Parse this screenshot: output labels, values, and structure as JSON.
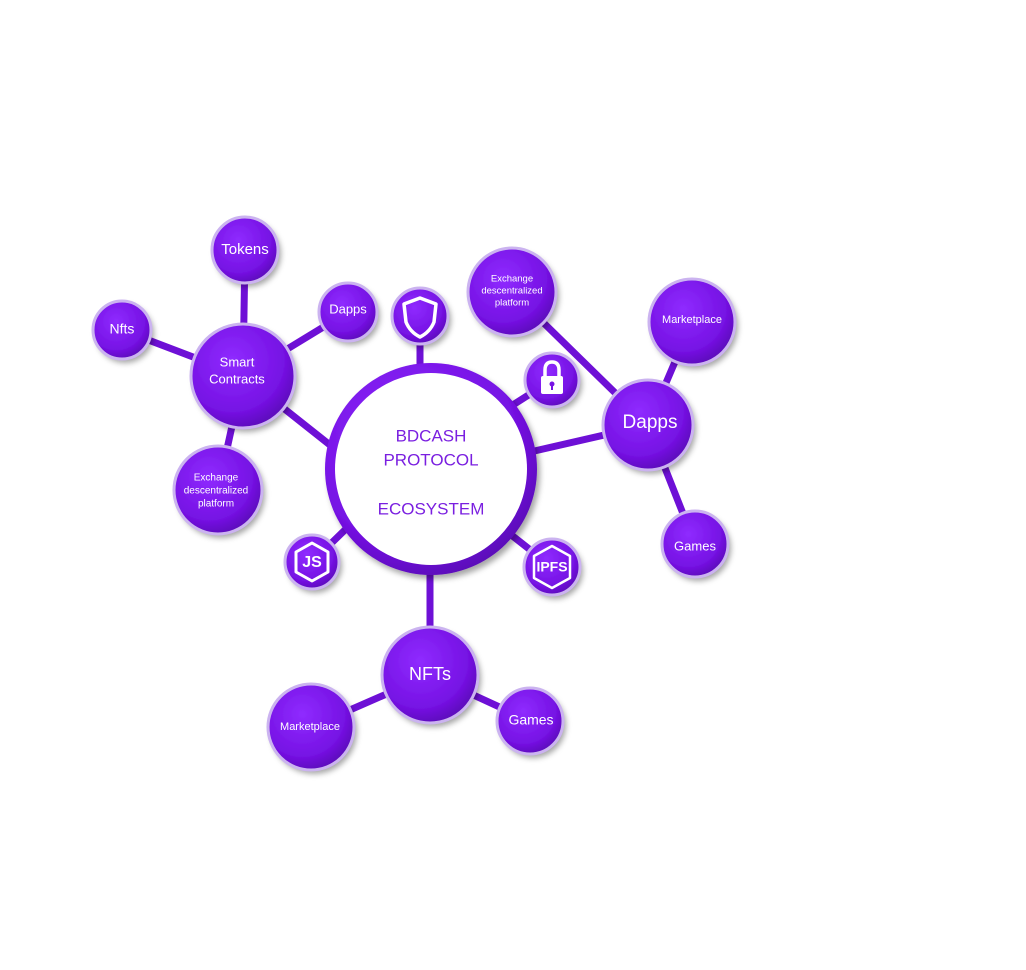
{
  "colors": {
    "node": "#7d16ec",
    "node_dark": "#5a06b8",
    "link": "#6e10d6",
    "center_text": "#7a1fe0",
    "background": "#ffffff"
  },
  "center": {
    "line1": "BDCASH",
    "line2": "PROTOCOL",
    "line3": "ECOSYSTEM"
  },
  "smart_contracts": {
    "title_line1": "Smart",
    "title_line2": "Contracts",
    "tokens": "Tokens",
    "nfts": "Nfts",
    "dapps": "Dapps",
    "exchange_line1": "Exchange",
    "exchange_line2": "descentralized",
    "exchange_line3": "platform"
  },
  "dapps": {
    "title": "Dapps",
    "exchange_line1": "Exchange",
    "exchange_line2": "descentralized",
    "exchange_line3": "platform",
    "marketplace": "Marketplace",
    "games": "Games"
  },
  "nfts": {
    "title": "NFTs",
    "marketplace": "Marketplace",
    "games": "Games"
  },
  "icons": {
    "shield": "shield-icon",
    "lock": "lock-icon",
    "js": "JS",
    "ipfs": "IPFS"
  }
}
